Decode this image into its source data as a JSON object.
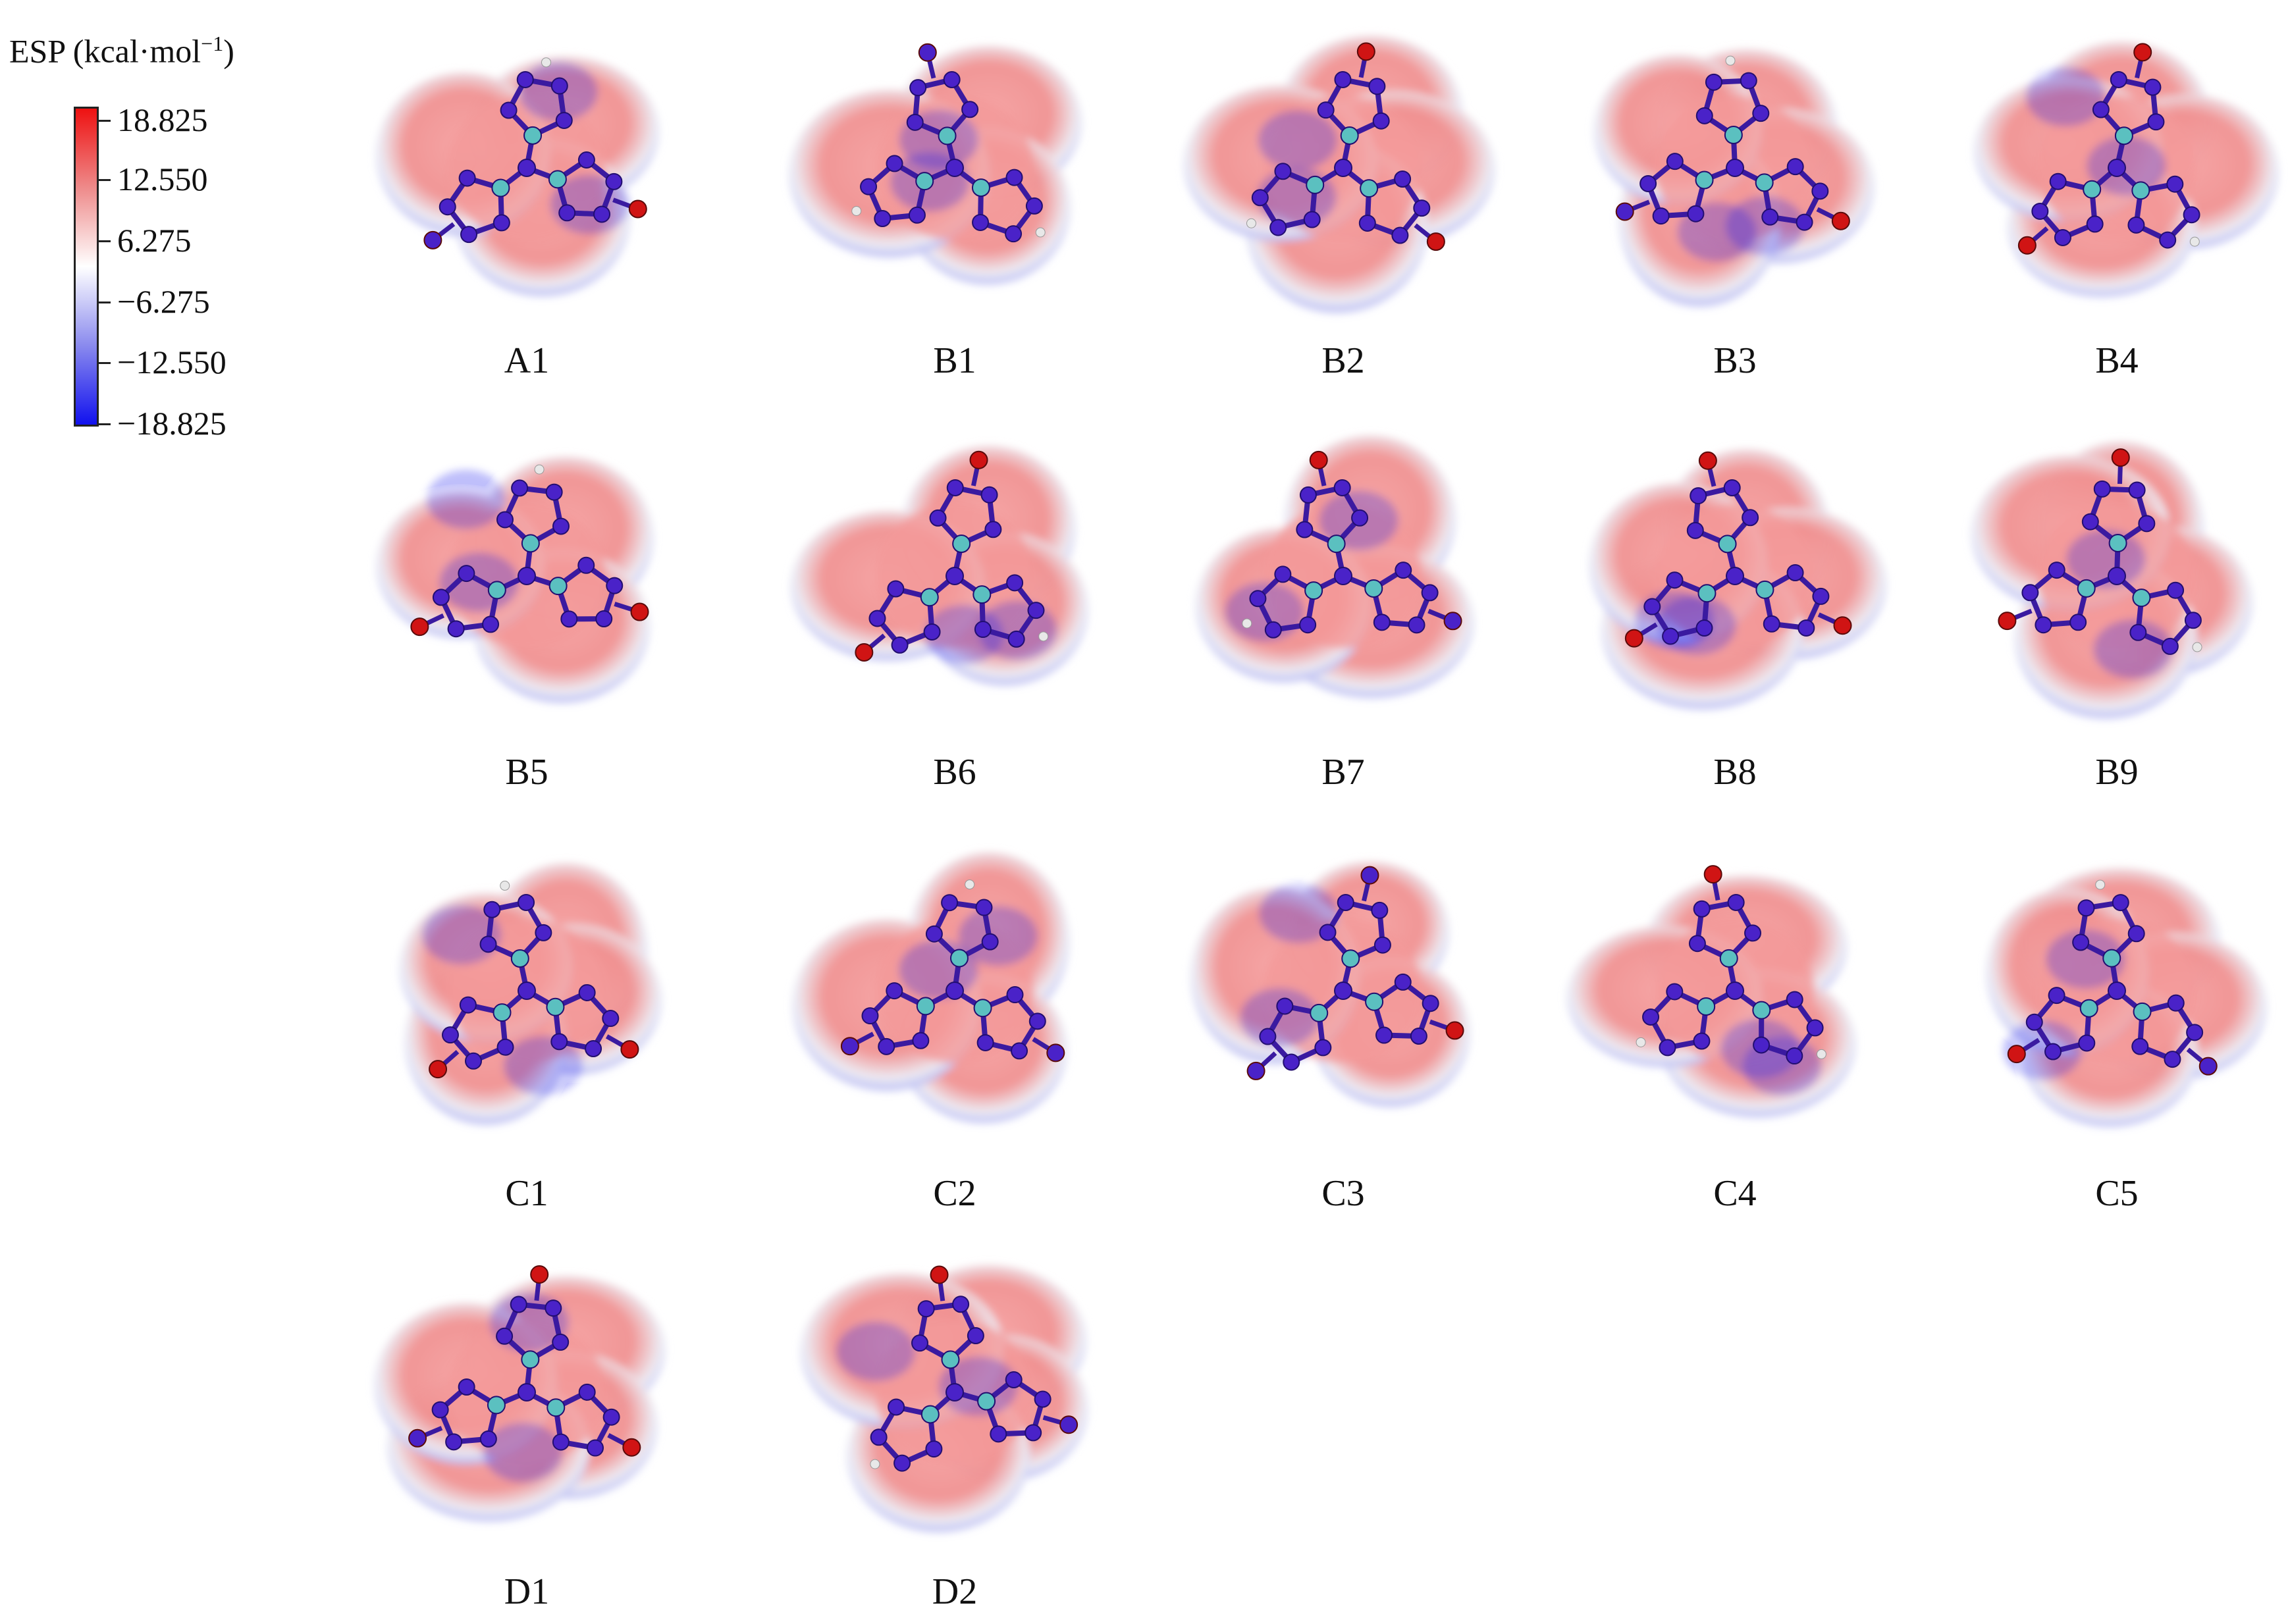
{
  "legend": {
    "title_prefix": "ESP (kcal·mol",
    "title_sup": "−1",
    "title_suffix": ")",
    "ticks": [
      "18.825",
      "12.550",
      "6.275",
      "−6.275",
      "−12.550",
      "−18.825"
    ],
    "colors": {
      "positive": "#ee1111",
      "neutral": "#ffffff",
      "negative": "#1111ee"
    }
  },
  "panels": [
    "A1",
    "B1",
    "B2",
    "B3",
    "B4",
    "B5",
    "B6",
    "B7",
    "B8",
    "B9",
    "C1",
    "C2",
    "C3",
    "C4",
    "C5",
    "D1",
    "D2"
  ],
  "atom_colors": {
    "nitrogen": "#4a22c8",
    "carbon": "#5bc0c0",
    "oxygen": "#d01414",
    "hydrogen": "#e8e8e8"
  }
}
